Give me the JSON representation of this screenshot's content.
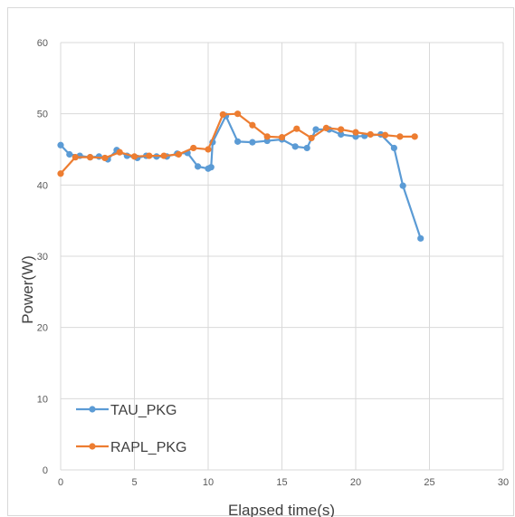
{
  "chart_data": {
    "type": "line",
    "title": "",
    "xlabel": "Elapsed time(s)",
    "ylabel": "Power(W)",
    "xlim": [
      0,
      30
    ],
    "ylim": [
      0,
      60
    ],
    "xticks": [
      0,
      5,
      10,
      15,
      20,
      25,
      30
    ],
    "yticks": [
      0,
      10,
      20,
      30,
      40,
      50,
      60
    ],
    "grid": true,
    "legend_position": "bottom-left",
    "series": [
      {
        "name": "TAU_PKG",
        "color": "#5b9bd5",
        "x": [
          0,
          0.6,
          1.3,
          2,
          2.6,
          3.2,
          3.8,
          4.5,
          5.2,
          5.8,
          6.5,
          7.2,
          7.9,
          8.6,
          9.3,
          10,
          10.2,
          10.3,
          11.2,
          12,
          13,
          14,
          15,
          15.9,
          16.7,
          17.3,
          18.2,
          19,
          20,
          20.6,
          21.7,
          22.6,
          23.2,
          24.4
        ],
        "y": [
          45.6,
          44.3,
          44.1,
          43.9,
          44,
          43.6,
          44.9,
          44.1,
          43.8,
          44.1,
          44,
          44,
          44.4,
          44.5,
          42.6,
          42.3,
          42.5,
          46,
          49.7,
          46.1,
          46,
          46.2,
          46.4,
          45.4,
          45.2,
          47.8,
          47.8,
          47.1,
          46.8,
          46.9,
          47.1,
          45.2,
          39.9,
          32.5
        ]
      },
      {
        "name": "RAPL_PKG",
        "color": "#ed7d31",
        "x": [
          0,
          1,
          2,
          3,
          4,
          5,
          6,
          7,
          8,
          9,
          10,
          11,
          12,
          13,
          14,
          15,
          16,
          17,
          18,
          19,
          20,
          21,
          22,
          23,
          24
        ],
        "y": [
          41.6,
          43.9,
          43.9,
          43.8,
          44.6,
          44,
          44.1,
          44.1,
          44.3,
          45.2,
          45,
          49.9,
          50,
          48.4,
          46.8,
          46.7,
          47.9,
          46.6,
          48,
          47.8,
          47.4,
          47.1,
          47,
          46.8,
          46.8
        ]
      }
    ]
  }
}
